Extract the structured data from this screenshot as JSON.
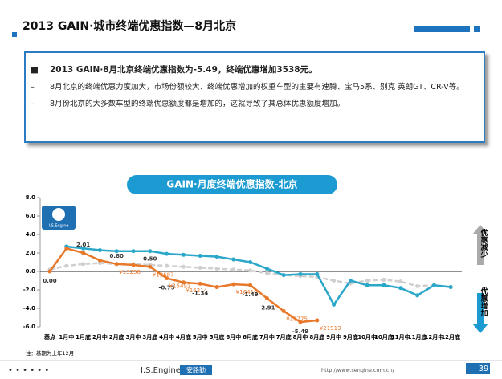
{
  "header": {
    "title": "2013 GAIN·城市终端优惠指数—8月北京"
  },
  "summary": {
    "headline": "2013 GAIN·8月北京终端优惠指数为-5.49，终端优惠增加3538元。",
    "bullets": [
      "8月北京的终端优惠力度加大，市场份额较大、终端优惠增加的权重车型的主要有速腾、宝马5系、别克 英朗GT、CR-V等。",
      "8月份北京的大多数车型的终端优惠额度都是增加的，这就导致了其总体优惠额度增加。"
    ]
  },
  "chart_data": {
    "type": "line",
    "title": "GAIN·月度终端优惠指数-北京",
    "logo": "I.S.Engine",
    "categories": [
      "基点",
      "1月中",
      "1月底",
      "2月中",
      "2月底",
      "3月中",
      "3月底",
      "4月中",
      "4月底",
      "5月中",
      "5月底",
      "6月中",
      "6月底",
      "7月中",
      "7月底",
      "8月中",
      "8月底",
      "9月中",
      "9月底",
      "10月中",
      "10月底",
      "11月中",
      "11月底",
      "12月中",
      "12月底"
    ],
    "series": [
      {
        "color": "#cfcfcf",
        "dashed": true,
        "values": [
          0.2,
          0.6,
          0.8,
          0.9,
          0.8,
          0.8,
          0.7,
          0.6,
          0.5,
          0.4,
          0.3,
          0.2,
          0.1,
          -0.2,
          -0.4,
          -0.5,
          -0.6,
          -1.0,
          -1.3,
          -1.0,
          -0.9,
          -1.1,
          -1.6,
          -1.5,
          -1.7
        ]
      },
      {
        "color": "#2aa7c9",
        "values": [
          null,
          2.7,
          2.5,
          2.3,
          2.2,
          2.2,
          2.2,
          1.9,
          1.8,
          1.7,
          1.6,
          1.3,
          1.0,
          0.3,
          -0.4,
          -0.3,
          -0.3,
          -3.6,
          -1.0,
          -1.5,
          -1.5,
          -1.8,
          -2.6,
          -1.5,
          -1.7
        ]
      },
      {
        "color": "#e8792b",
        "values": [
          0,
          2.5,
          2.01,
          1.2,
          0.8,
          0.7,
          0.5,
          -0.75,
          -1.2,
          -1.34,
          -1.7,
          -1.4,
          -1.49,
          -2.91,
          -4.3,
          -5.49,
          -5.3,
          null,
          null,
          null,
          null,
          null,
          null,
          null,
          null
        ],
        "value_labels": [
          "0.00",
          null,
          "2.01",
          null,
          "0.80",
          null,
          "0.50",
          "-0.75",
          null,
          "-1.34",
          null,
          null,
          "-1.49",
          "-2.91",
          null,
          "-5.49",
          null,
          null,
          null,
          null,
          null,
          null,
          null,
          null,
          null
        ],
        "price_labels": [
          null,
          null,
          null,
          null,
          "¥13258",
          null,
          "¥12687",
          "¥15492",
          "¥16214",
          null,
          null,
          "¥16416",
          null,
          null,
          "¥18775",
          null,
          "¥21913",
          null,
          null,
          null,
          null,
          null,
          null,
          null,
          null
        ]
      }
    ],
    "ylim": [
      -6,
      8
    ],
    "yticks": [
      {
        "value": -6,
        "label": "-6.0"
      },
      {
        "value": -4,
        "label": "-4.0"
      },
      {
        "value": -2,
        "label": "-2.0"
      },
      {
        "value": 0,
        "label": "0.0"
      },
      {
        "value": 2,
        "label": "2.0"
      },
      {
        "value": 4,
        "label": "4.0"
      },
      {
        "value": 6,
        "label": "6.0"
      },
      {
        "value": 8,
        "label": "8.0"
      }
    ],
    "side_labels": {
      "up": "优惠减少",
      "down": "优惠增加"
    },
    "note": "注：基期为上年12月"
  },
  "footer": {
    "brand": "I.S.Engine",
    "company": "安路勤",
    "url": "http://www.sengine.com.cn/",
    "page": "39"
  }
}
